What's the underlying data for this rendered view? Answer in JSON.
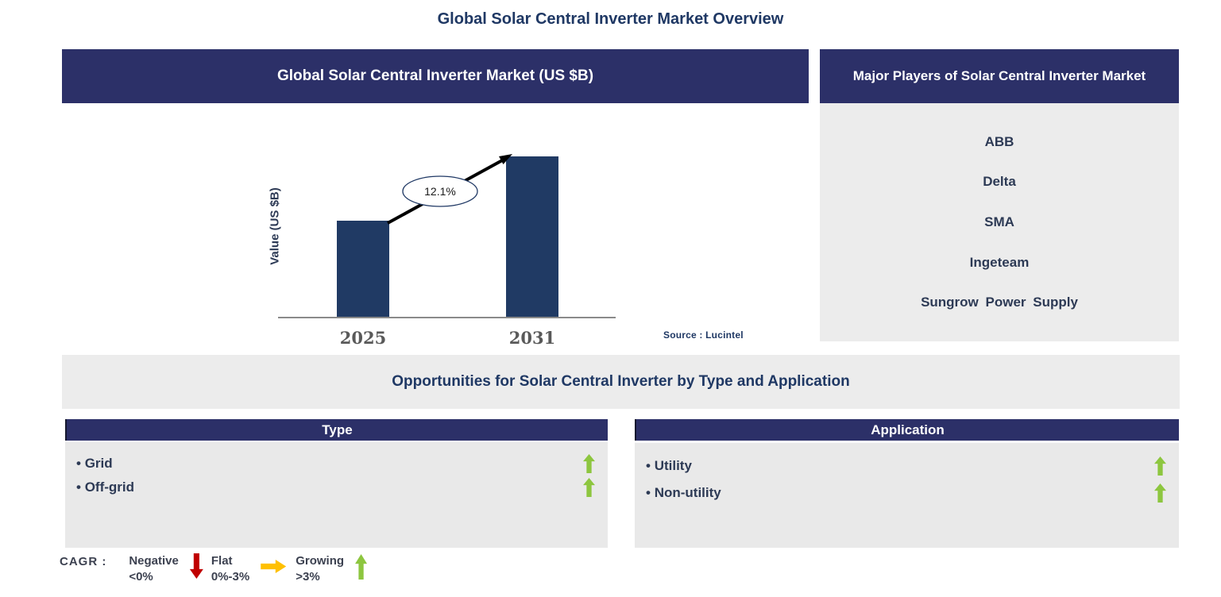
{
  "page_title": "Global Solar Central Inverter Market Overview",
  "chart": {
    "title": "Global Solar Central Inverter Market (US $B)",
    "y_axis_label": "Value (US $B)",
    "source": "Source : Lucintel",
    "cagr_annotation": "12.1%"
  },
  "chart_data": {
    "type": "bar",
    "categories": [
      "2025",
      "2031"
    ],
    "values": [
      0.6,
      1.0
    ],
    "value_note": "relative heights; y-axis has no numeric ticks",
    "title": "Global Solar Central Inverter Market (US $B)",
    "xlabel": "",
    "ylabel": "Value (US $B)",
    "annotation": "12.1%",
    "bar_color": "#203a64",
    "grid": false,
    "legend_position": "none",
    "source": "Source : Lucintel"
  },
  "players": {
    "title": "Major Players of Solar Central Inverter Market",
    "items": [
      "ABB",
      "Delta",
      "SMA",
      "Ingeteam",
      "Sungrow Power Supply"
    ]
  },
  "opportunities": {
    "title": "Opportunities for Solar Central Inverter by Type and Application"
  },
  "type_panel": {
    "title": "Type",
    "items": [
      {
        "label": "Grid",
        "trend": "growing"
      },
      {
        "label": "Off-grid",
        "trend": "growing"
      }
    ]
  },
  "application_panel": {
    "title": "Application",
    "items": [
      {
        "label": "Utility",
        "trend": "growing"
      },
      {
        "label": "Non-utility",
        "trend": "growing"
      }
    ]
  },
  "legend": {
    "prefix": "CAGR :",
    "items": [
      {
        "label": "Negative",
        "range": "<0%",
        "direction": "down",
        "color": "#c00000"
      },
      {
        "label": "Flat",
        "range": "0%-3%",
        "direction": "right",
        "color": "#ffc000"
      },
      {
        "label": "Growing",
        "range": ">3%",
        "direction": "up",
        "color": "#8dc63f"
      }
    ]
  },
  "colors": {
    "header_navy": "#2c3068",
    "bar_navy": "#203a64",
    "panel_gray": "#ececec",
    "title_navy": "#1f3864",
    "growing_green": "#8dc63f",
    "negative_red": "#c00000",
    "flat_amber": "#ffc000"
  }
}
